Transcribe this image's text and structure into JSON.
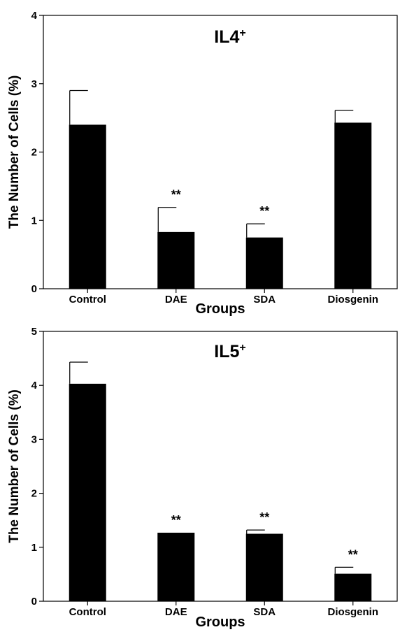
{
  "chart_data": [
    {
      "type": "bar",
      "title": "IL4",
      "title_superscript": "+",
      "xlabel": "Groups",
      "ylabel": "The Number of Cells (%)",
      "ylim": [
        0,
        4
      ],
      "yticks": [
        "0",
        "1",
        "2",
        "3",
        "4"
      ],
      "categories": [
        "Control",
        "DAE",
        "SDA",
        "Diosgenin"
      ],
      "values": [
        2.4,
        0.83,
        0.75,
        2.43
      ],
      "errors": [
        0.5,
        0.36,
        0.2,
        0.18
      ],
      "significance": [
        "",
        "**",
        "**",
        ""
      ],
      "bar_color": "#000000",
      "grid": false,
      "legend": "none"
    },
    {
      "type": "bar",
      "title": "IL5",
      "title_superscript": "+",
      "xlabel": "Groups",
      "ylabel": "The Number of Cells (%)",
      "ylim": [
        0,
        5
      ],
      "yticks": [
        "0",
        "1",
        "2",
        "3",
        "4",
        "5"
      ],
      "categories": [
        "Control",
        "DAE",
        "SDA",
        "Diosgenin"
      ],
      "values": [
        4.03,
        1.27,
        1.25,
        0.51
      ],
      "errors": [
        0.4,
        0.0,
        0.07,
        0.12
      ],
      "significance": [
        "",
        "**",
        "**",
        "**"
      ],
      "bar_color": "#000000",
      "grid": false,
      "legend": "none"
    }
  ]
}
